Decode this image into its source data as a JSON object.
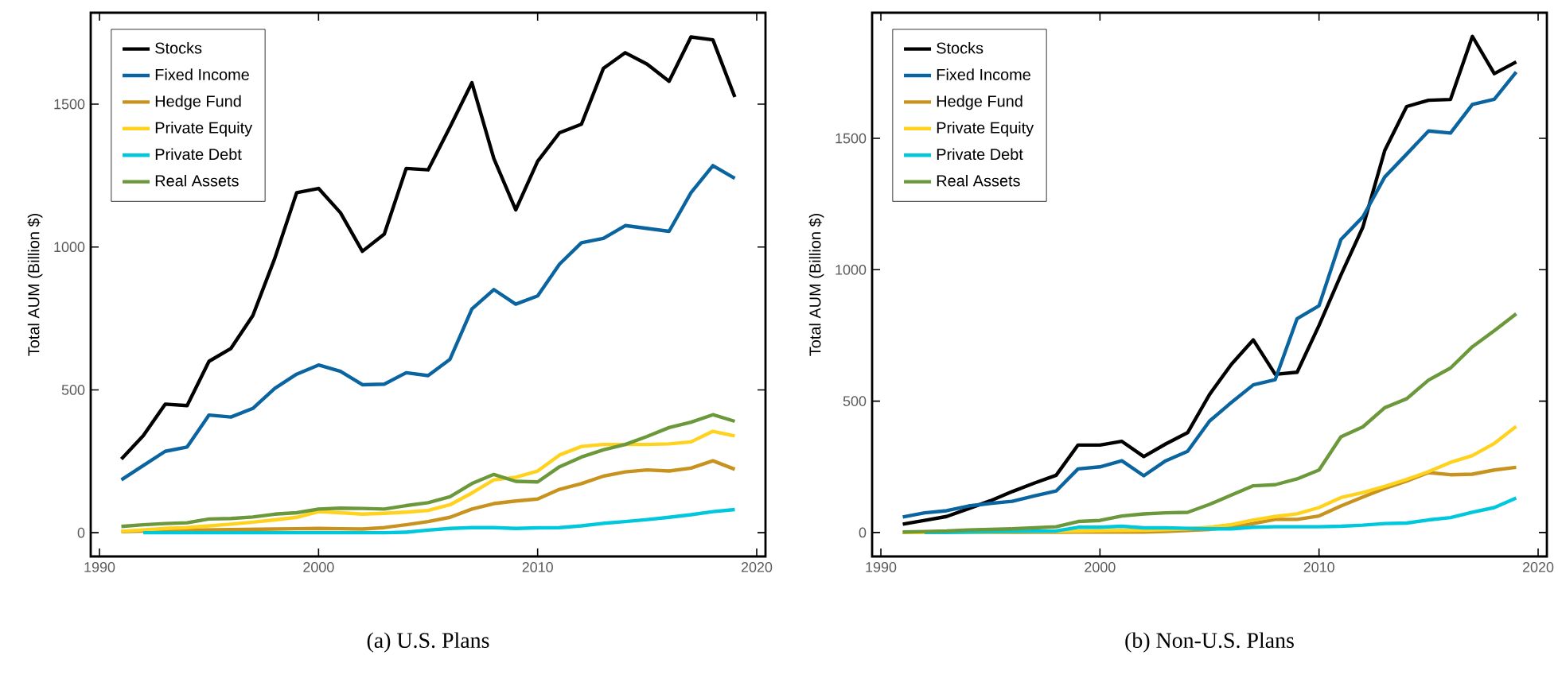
{
  "chart_data": [
    {
      "type": "line",
      "title": "(a) U.S. Plans",
      "ylabel": "Total AUM (Billion $)",
      "x": [
        1991,
        1992,
        1993,
        1994,
        1995,
        1996,
        1997,
        1998,
        1999,
        2000,
        2001,
        2002,
        2003,
        2004,
        2005,
        2006,
        2007,
        2008,
        2009,
        2010,
        2011,
        2012,
        2013,
        2014,
        2015,
        2016,
        2017,
        2018,
        2019
      ],
      "series": [
        {
          "name": "Stocks",
          "color": "#000000",
          "values": [
            258,
            340,
            450,
            445,
            600,
            645,
            760,
            960,
            1190,
            1205,
            1120,
            985,
            1045,
            1275,
            1270,
            1420,
            1575,
            1310,
            1130,
            1300,
            1400,
            1430,
            1625,
            1680,
            1640,
            1580,
            1735,
            1725,
            1525
          ]
        },
        {
          "name": "Fixed Income",
          "color": "#0a64a0",
          "values": [
            185,
            235,
            285,
            300,
            412,
            405,
            435,
            505,
            555,
            587,
            565,
            518,
            520,
            560,
            550,
            607,
            783,
            851,
            800,
            829,
            940,
            1015,
            1030,
            1075,
            1065,
            1055,
            1190,
            1285,
            1240
          ]
        },
        {
          "name": "Hedge Fund",
          "color": "#c8921e",
          "values": [
            4,
            6,
            8,
            9,
            10,
            11,
            12,
            13,
            14,
            15,
            14,
            13,
            18,
            28,
            39,
            54,
            83,
            102,
            111,
            118,
            152,
            172,
            198,
            213,
            220,
            216,
            226,
            252,
            222
          ]
        },
        {
          "name": "Private Equity",
          "color": "#ffd21e",
          "values": [
            5,
            10,
            15,
            18,
            24,
            30,
            37,
            45,
            54,
            74,
            70,
            65,
            68,
            72,
            78,
            98,
            139,
            185,
            194,
            216,
            272,
            302,
            309,
            309,
            309,
            311,
            318,
            355,
            339
          ]
        },
        {
          "name": "Private Debt",
          "color": "#00c8dc",
          "values": [
            null,
            0,
            0,
            0,
            0,
            0,
            0,
            0,
            0,
            0,
            0,
            0,
            0,
            2,
            9,
            15,
            18,
            18,
            15,
            17,
            18,
            24,
            33,
            39,
            46,
            54,
            63,
            74,
            81
          ]
        },
        {
          "name": "Real Assets",
          "color": "#6b983a",
          "values": [
            22,
            28,
            32,
            35,
            48,
            50,
            55,
            65,
            70,
            83,
            86,
            85,
            83,
            95,
            105,
            126,
            172,
            204,
            180,
            178,
            231,
            265,
            290,
            309,
            337,
            368,
            387,
            413,
            390
          ]
        }
      ],
      "xlim": [
        1989.6,
        2020.4
      ],
      "ylim": [
        -83,
        1820
      ],
      "xticks": [
        1990,
        2000,
        2010,
        2020
      ],
      "yticks": [
        0,
        500,
        1000,
        1500
      ],
      "legend": "top left",
      "marker": "none",
      "line_style": "solid",
      "grid": false
    },
    {
      "type": "line",
      "title": "(b) Non-U.S. Plans",
      "ylabel": "Total AUM (Billion $)",
      "x": [
        1991,
        1992,
        1993,
        1994,
        1995,
        1996,
        1997,
        1998,
        1999,
        2000,
        2001,
        2002,
        2003,
        2004,
        2005,
        2006,
        2007,
        2008,
        2009,
        2010,
        2011,
        2012,
        2013,
        2014,
        2015,
        2016,
        2017,
        2018,
        2019
      ],
      "series": [
        {
          "name": "Stocks",
          "color": "#000000",
          "values": [
            32,
            46,
            61,
            91,
            121,
            156,
            188,
            218,
            333,
            333,
            347,
            289,
            337,
            380,
            525,
            640,
            733,
            602,
            610,
            788,
            980,
            1162,
            1454,
            1621,
            1645,
            1648,
            1888,
            1746,
            1791
          ]
        },
        {
          "name": "Fixed Income",
          "color": "#0a64a0",
          "values": [
            59,
            75,
            83,
            101,
            111,
            119,
            139,
            158,
            242,
            250,
            273,
            216,
            273,
            309,
            424,
            495,
            562,
            582,
            814,
            863,
            1115,
            1201,
            1353,
            1440,
            1528,
            1520,
            1629,
            1649,
            1752
          ]
        },
        {
          "name": "Hedge Fund",
          "color": "#c8921e",
          "values": [
            0,
            0,
            0,
            0,
            0,
            0,
            1,
            1,
            2,
            2,
            2,
            2,
            4,
            8,
            12,
            20,
            34,
            50,
            50,
            63,
            101,
            135,
            168,
            196,
            228,
            220,
            222,
            238,
            248
          ]
        },
        {
          "name": "Private Equity",
          "color": "#ffd21e",
          "values": [
            0,
            0,
            0,
            0,
            1,
            2,
            3,
            4,
            6,
            7,
            8,
            9,
            11,
            14,
            20,
            30,
            48,
            61,
            71,
            95,
            133,
            152,
            176,
            202,
            232,
            267,
            293,
            339,
            404
          ]
        },
        {
          "name": "Private Debt",
          "color": "#00c8dc",
          "values": [
            null,
            0,
            0,
            2,
            3,
            4,
            5,
            6,
            20,
            20,
            24,
            18,
            18,
            16,
            14,
            14,
            20,
            22,
            22,
            22,
            24,
            28,
            34,
            36,
            48,
            57,
            77,
            95,
            131
          ]
        },
        {
          "name": "Real Assets",
          "color": "#6b983a",
          "values": [
            2,
            4,
            6,
            10,
            12,
            14,
            18,
            22,
            42,
            46,
            63,
            71,
            75,
            77,
            107,
            143,
            178,
            182,
            204,
            238,
            364,
            402,
            475,
            509,
            580,
            626,
            707,
            768,
            832
          ]
        }
      ],
      "xlim": [
        1989.6,
        2020.4
      ],
      "ylim": [
        -91,
        1978
      ],
      "xticks": [
        1990,
        2000,
        2010,
        2020
      ],
      "yticks": [
        0,
        500,
        1000,
        1500
      ],
      "legend": "top left",
      "marker": "none",
      "line_style": "solid",
      "grid": false
    }
  ]
}
